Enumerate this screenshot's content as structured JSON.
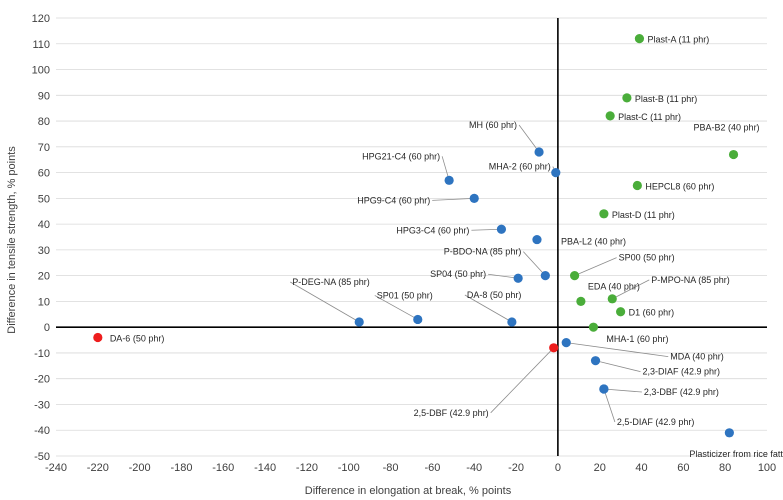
{
  "chart_data": {
    "type": "scatter",
    "xlabel": "Difference in elongation at break, % points",
    "ylabel": "Difference in tensile strength, % points",
    "xlim": [
      -240,
      100
    ],
    "ylim": [
      -50,
      120
    ],
    "xticks": [
      -240,
      -220,
      -200,
      -180,
      -160,
      -140,
      -120,
      -100,
      -80,
      -60,
      -40,
      -20,
      0,
      20,
      40,
      60,
      80,
      100
    ],
    "yticks": [
      -50,
      -40,
      -30,
      -20,
      -10,
      0,
      10,
      20,
      30,
      40,
      50,
      60,
      70,
      80,
      90,
      100,
      110,
      120
    ],
    "grid": "horizontal",
    "colors": {
      "green": "#4aad3a",
      "blue": "#2e74c0",
      "red": "#ee1d1d"
    },
    "points": [
      {
        "label": "Plast-A (11 phr)",
        "x": 39,
        "y": 112,
        "color": "green"
      },
      {
        "label": "Plast-B (11 phr)",
        "x": 33,
        "y": 89,
        "color": "green"
      },
      {
        "label": "Plast-C (11 phr)",
        "x": 25,
        "y": 82,
        "color": "green"
      },
      {
        "label": "PBA-B2 (40 phr)",
        "x": 84,
        "y": 67,
        "color": "green"
      },
      {
        "label": "HEPCL8 (60 phr)",
        "x": 38,
        "y": 55,
        "color": "green"
      },
      {
        "label": "Plast-D (11 phr)",
        "x": 22,
        "y": 44,
        "color": "green"
      },
      {
        "label": "SP00 (50 phr)",
        "x": 8,
        "y": 20,
        "color": "green"
      },
      {
        "label": "EDA (40 phr)",
        "x": 11,
        "y": 10,
        "color": "green"
      },
      {
        "label": "P-MPO-NA (85 phr)",
        "x": 26,
        "y": 11,
        "color": "green"
      },
      {
        "label": "D1 (60 phr)",
        "x": 30,
        "y": 6,
        "color": "green"
      },
      {
        "label": "MHA-1 (60 phr)",
        "x": 17,
        "y": 0,
        "color": "green"
      },
      {
        "label": "MH (60 phr)",
        "x": -9,
        "y": 68,
        "color": "blue"
      },
      {
        "label": "MHA-2 (60 phr)",
        "x": -1,
        "y": 60,
        "color": "blue"
      },
      {
        "label": "HPG21-C4 (60 phr)",
        "x": -52,
        "y": 57,
        "color": "blue"
      },
      {
        "label": "HPG9-C4 (60 phr)",
        "x": -40,
        "y": 50,
        "color": "blue"
      },
      {
        "label": "HPG3-C4 (60 phr)",
        "x": -27,
        "y": 38,
        "color": "blue"
      },
      {
        "label": "PBA-L2 (40 phr)",
        "x": -10,
        "y": 34,
        "color": "blue"
      },
      {
        "label": "P-BDO-NA (85 phr)",
        "x": -6,
        "y": 20,
        "color": "blue"
      },
      {
        "label": "SP04 (50 phr)",
        "x": -19,
        "y": 19,
        "color": "blue"
      },
      {
        "label": "P-DEG-NA (85 phr)",
        "x": -95,
        "y": 2,
        "color": "blue"
      },
      {
        "label": "SP01 (50 phr)",
        "x": -67,
        "y": 3,
        "color": "blue"
      },
      {
        "label": "DA-8 (50 phr)",
        "x": -22,
        "y": 2,
        "color": "blue"
      },
      {
        "label": "MDA (40 phr)",
        "x": 4,
        "y": -6,
        "color": "blue"
      },
      {
        "label": "2,3-DIAF (42.9 phr)",
        "x": 18,
        "y": -13,
        "color": "blue"
      },
      {
        "label": "2,5-DIAF (42.9 phr)",
        "x": 22,
        "y": -24,
        "color": "blue"
      },
      {
        "label": "2,3-DBF (42.9 phr)",
        "x": 22,
        "y": -24,
        "color": "blue"
      },
      {
        "label": "Plasticizer from rice fatty acid",
        "x": 82,
        "y": -41,
        "color": "blue"
      },
      {
        "label": "DA-6 (50 phr)",
        "x": -220,
        "y": -4,
        "color": "red"
      },
      {
        "label": "2,5-DBF (42.9 phr)",
        "x": -2,
        "y": -8,
        "color": "red"
      }
    ]
  }
}
